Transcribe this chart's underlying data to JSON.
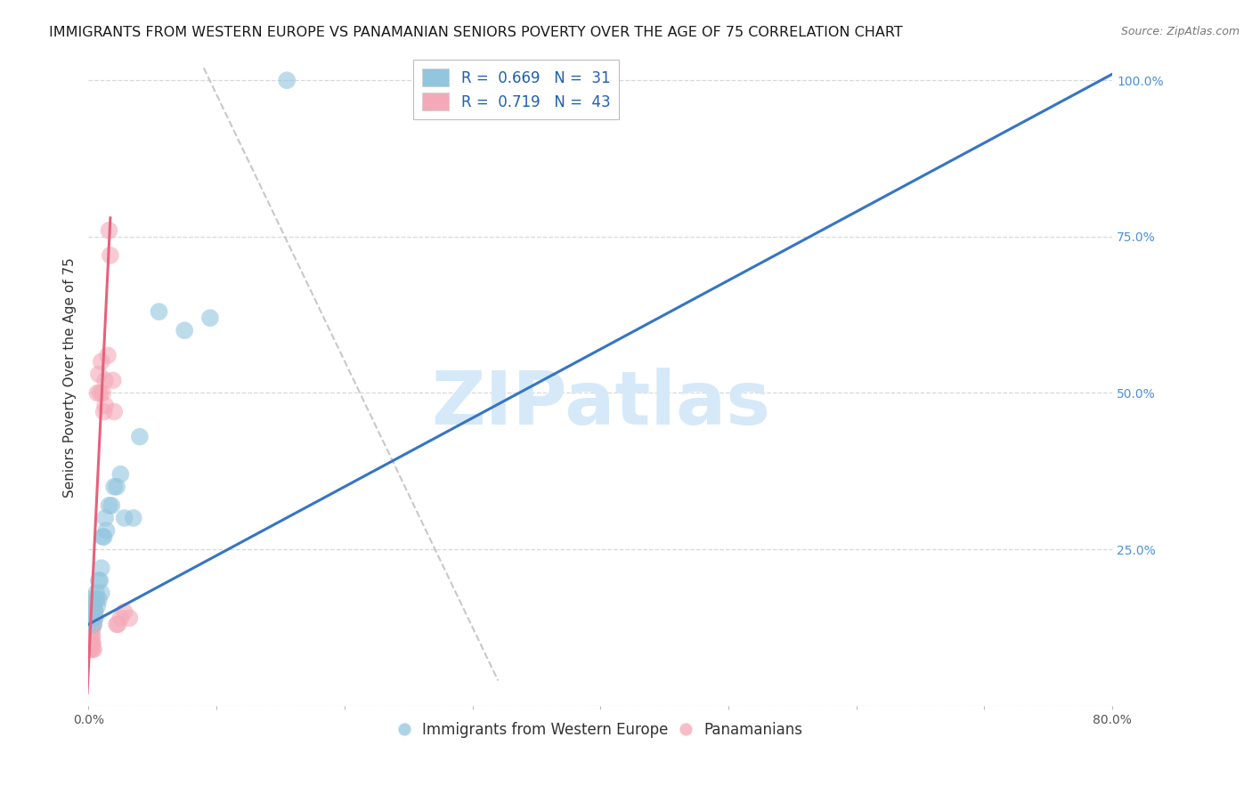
{
  "title": "IMMIGRANTS FROM WESTERN EUROPE VS PANAMANIAN SENIORS POVERTY OVER THE AGE OF 75 CORRELATION CHART",
  "source": "Source: ZipAtlas.com",
  "ylabel": "Seniors Poverty Over the Age of 75",
  "xlim": [
    0.0,
    0.8
  ],
  "ylim": [
    0.0,
    1.05
  ],
  "ytick_labels_right": [
    "100.0%",
    "75.0%",
    "50.0%",
    "25.0%"
  ],
  "ytick_vals_right": [
    1.0,
    0.75,
    0.5,
    0.25
  ],
  "blue_R": "0.669",
  "blue_N": "31",
  "pink_R": "0.719",
  "pink_N": "43",
  "legend_labels": [
    "Immigrants from Western Europe",
    "Panamanians"
  ],
  "blue_color": "#92c5de",
  "pink_color": "#f4a9b8",
  "blue_line_color": "#3575c3",
  "pink_line_color": "#e8607a",
  "watermark_color": "#d6e9f8",
  "grid_color": "#d8d8d8",
  "background_color": "#ffffff",
  "title_fontsize": 11.5,
  "axis_label_fontsize": 11,
  "tick_fontsize": 10,
  "legend_fontsize": 12,
  "watermark_fontsize": 60,
  "blue_scatter_x": [
    0.002,
    0.003,
    0.003,
    0.004,
    0.004,
    0.005,
    0.005,
    0.006,
    0.006,
    0.007,
    0.008,
    0.008,
    0.009,
    0.01,
    0.01,
    0.011,
    0.012,
    0.013,
    0.014,
    0.016,
    0.018,
    0.02,
    0.022,
    0.025,
    0.028,
    0.035,
    0.04,
    0.055,
    0.075,
    0.095,
    0.155
  ],
  "blue_scatter_y": [
    0.17,
    0.14,
    0.15,
    0.16,
    0.13,
    0.15,
    0.14,
    0.17,
    0.18,
    0.16,
    0.17,
    0.2,
    0.2,
    0.22,
    0.18,
    0.27,
    0.27,
    0.3,
    0.28,
    0.32,
    0.32,
    0.35,
    0.35,
    0.37,
    0.3,
    0.3,
    0.43,
    0.63,
    0.6,
    0.62,
    1.0
  ],
  "pink_scatter_x": [
    0.001,
    0.001,
    0.001,
    0.001,
    0.001,
    0.001,
    0.002,
    0.002,
    0.002,
    0.002,
    0.002,
    0.002,
    0.003,
    0.003,
    0.003,
    0.003,
    0.003,
    0.003,
    0.003,
    0.004,
    0.004,
    0.004,
    0.005,
    0.005,
    0.006,
    0.007,
    0.008,
    0.009,
    0.01,
    0.011,
    0.012,
    0.013,
    0.013,
    0.015,
    0.016,
    0.017,
    0.019,
    0.02,
    0.022,
    0.023,
    0.025,
    0.028,
    0.032
  ],
  "pink_scatter_y": [
    0.1,
    0.11,
    0.12,
    0.13,
    0.14,
    0.09,
    0.1,
    0.11,
    0.12,
    0.13,
    0.14,
    0.09,
    0.1,
    0.11,
    0.12,
    0.13,
    0.15,
    0.09,
    0.1,
    0.15,
    0.13,
    0.09,
    0.15,
    0.14,
    0.17,
    0.5,
    0.53,
    0.5,
    0.55,
    0.5,
    0.47,
    0.52,
    0.48,
    0.56,
    0.76,
    0.72,
    0.52,
    0.47,
    0.13,
    0.13,
    0.14,
    0.15,
    0.14
  ],
  "blue_trend_x": [
    0.0,
    0.8
  ],
  "blue_trend_y": [
    0.13,
    1.01
  ],
  "pink_trend_x": [
    -0.001,
    0.017
  ],
  "pink_trend_y": [
    0.02,
    0.78
  ],
  "dashed_trend_x": [
    0.09,
    0.32
  ],
  "dashed_trend_y": [
    1.02,
    0.04
  ]
}
